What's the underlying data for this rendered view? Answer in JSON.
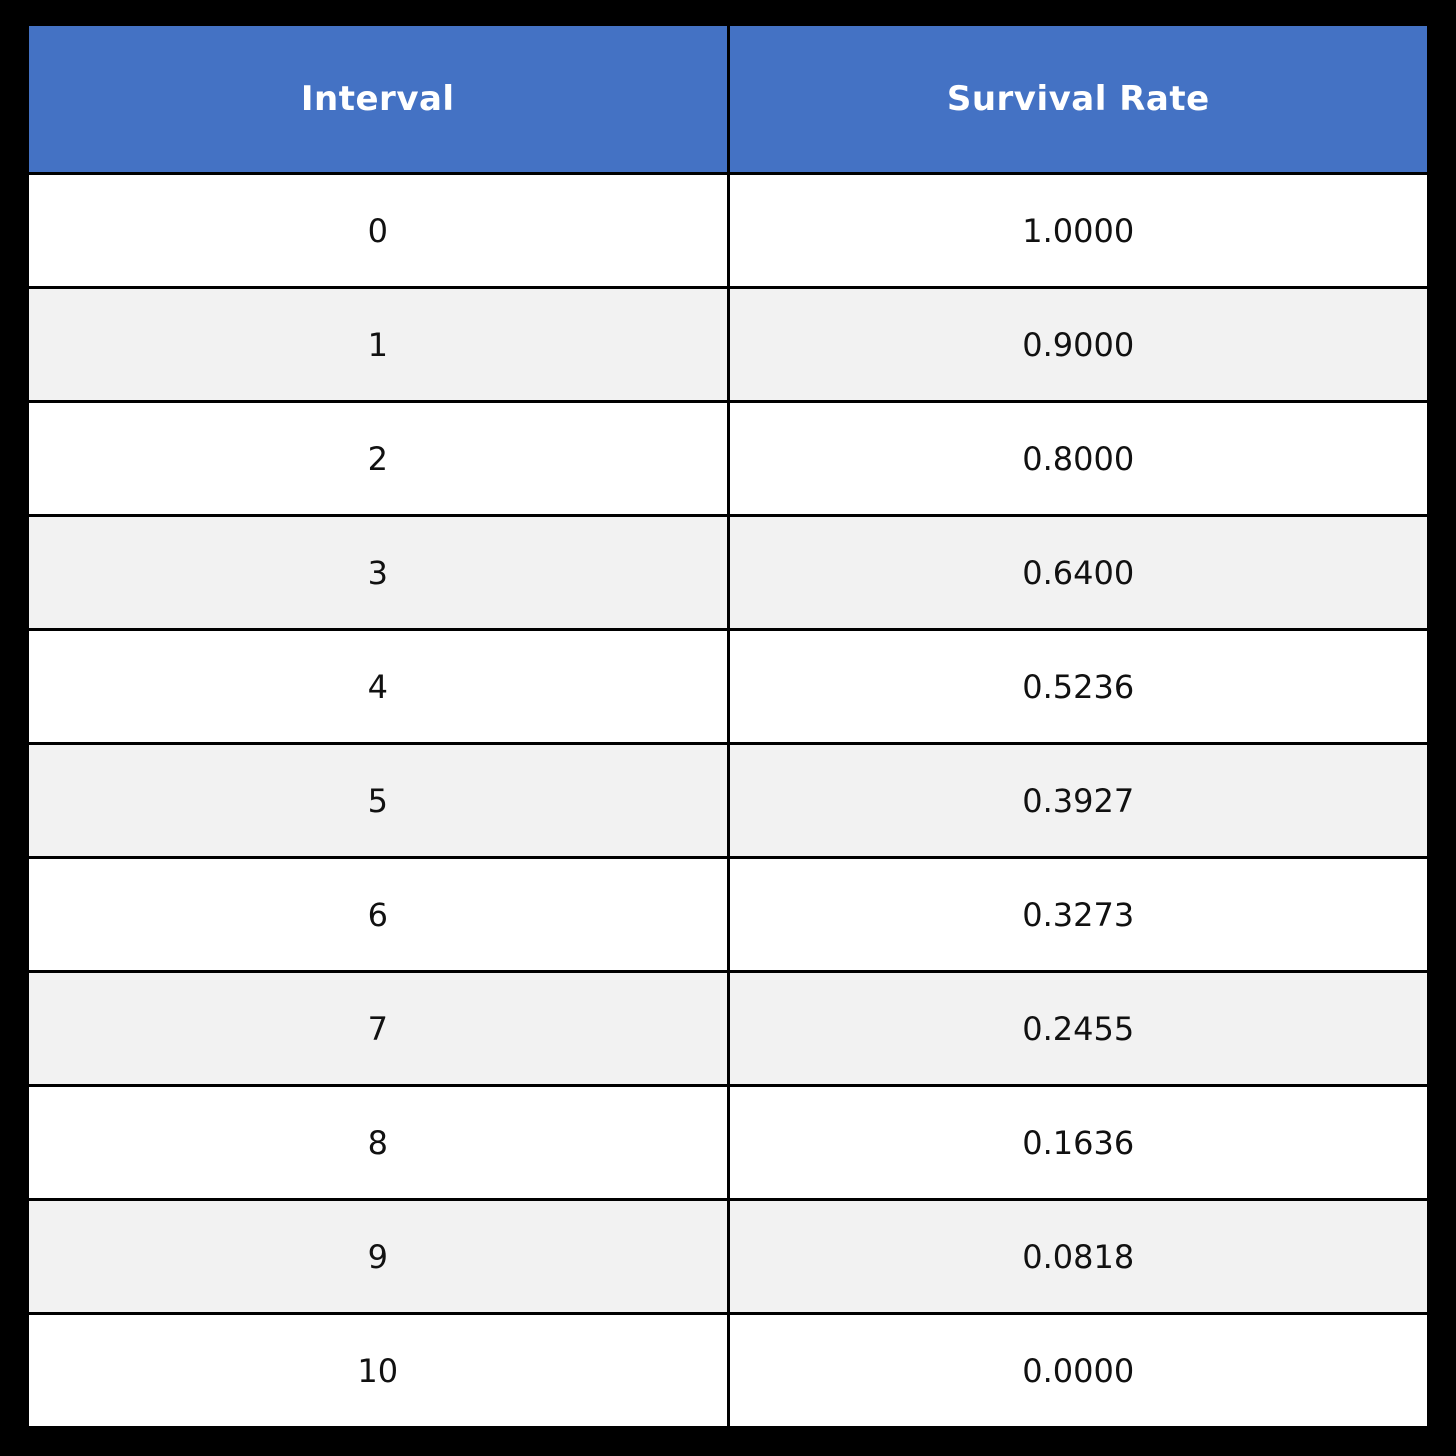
{
  "table": {
    "headers": [
      "Interval",
      "Survival Rate"
    ],
    "rows": [
      [
        "0",
        "1.0000"
      ],
      [
        "1",
        "0.9000"
      ],
      [
        "2",
        "0.8000"
      ],
      [
        "3",
        "0.6400"
      ],
      [
        "4",
        "0.5236"
      ],
      [
        "5",
        "0.3927"
      ],
      [
        "6",
        "0.3273"
      ],
      [
        "7",
        "0.2455"
      ],
      [
        "8",
        "0.1636"
      ],
      [
        "9",
        "0.0818"
      ],
      [
        "10",
        "0.0000"
      ]
    ]
  },
  "chart_data": {
    "type": "table",
    "columns": [
      "Interval",
      "Survival Rate"
    ],
    "x": [
      0,
      1,
      2,
      3,
      4,
      5,
      6,
      7,
      8,
      9,
      10
    ],
    "values": [
      1.0,
      0.9,
      0.8,
      0.64,
      0.5236,
      0.3927,
      0.3273,
      0.2455,
      0.1636,
      0.0818,
      0.0
    ],
    "title": "",
    "xlabel": "Interval",
    "ylabel": "Survival Rate"
  },
  "colors": {
    "header_bg": "#4472C4",
    "header_text": "#FFFFFF",
    "row_bg": "#FFFFFF",
    "row_alt_bg": "#F2F2F2",
    "border": "#000000",
    "page_bg": "#000000",
    "cell_text": "#111111"
  }
}
